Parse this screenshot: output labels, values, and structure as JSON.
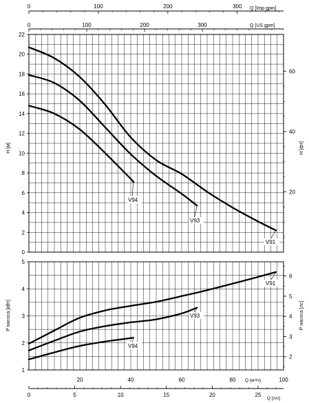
{
  "chart_data": [
    {
      "type": "line",
      "name": "head",
      "ylabel": "H [м]",
      "ylabel_right": "H [фт]",
      "xlim": [
        0,
        100
      ],
      "ylim": [
        0,
        22
      ],
      "yticks": [
        0,
        2,
        4,
        6,
        8,
        10,
        12,
        14,
        16,
        18,
        20,
        22
      ],
      "yticks_right": [
        20,
        40,
        60
      ],
      "series": [
        {
          "name": "V94",
          "x": [
            0,
            10,
            20,
            30,
            40,
            41
          ],
          "y": [
            14.8,
            14.0,
            12.4,
            10.0,
            7.4,
            7.1
          ]
        },
        {
          "name": "V93",
          "x": [
            0,
            10,
            20,
            30,
            40,
            50,
            60,
            66
          ],
          "y": [
            17.9,
            17.1,
            15.3,
            12.6,
            9.9,
            7.7,
            5.9,
            4.7
          ]
        },
        {
          "name": "V91",
          "x": [
            0,
            10,
            20,
            30,
            40,
            50,
            60,
            70,
            80,
            90,
            97
          ],
          "y": [
            20.7,
            19.6,
            17.7,
            14.9,
            11.6,
            9.3,
            7.9,
            6.1,
            4.5,
            3.1,
            2.2
          ]
        }
      ]
    },
    {
      "type": "line",
      "name": "power",
      "ylabel": "P насоса [кВт]",
      "ylabel_right": "P насоса [лс]",
      "xlim": [
        0,
        100
      ],
      "ylim": [
        1,
        5
      ],
      "yticks": [
        1,
        2,
        3,
        4,
        5
      ],
      "yticks_right": [
        2,
        3,
        4,
        5,
        6
      ],
      "series": [
        {
          "name": "V94",
          "x": [
            0,
            10,
            20,
            30,
            41
          ],
          "y": [
            1.39,
            1.65,
            1.89,
            2.05,
            2.19
          ]
        },
        {
          "name": "V93",
          "x": [
            0,
            10,
            20,
            30,
            40,
            50,
            60,
            66
          ],
          "y": [
            1.72,
            2.08,
            2.42,
            2.62,
            2.76,
            2.87,
            3.09,
            3.3
          ]
        },
        {
          "name": "V91",
          "x": [
            0,
            10,
            20,
            30,
            40,
            50,
            60,
            70,
            80,
            90,
            97
          ],
          "y": [
            1.97,
            2.46,
            2.93,
            3.2,
            3.37,
            3.52,
            3.73,
            3.95,
            4.19,
            4.44,
            4.62
          ]
        }
      ]
    }
  ],
  "axes": {
    "imp_gpm": {
      "label": "Q [Imp gpm]",
      "ticks": [
        "0",
        "100",
        "200",
        "300"
      ]
    },
    "us_gpm": {
      "label": "Q [US gpm]",
      "ticks": [
        "0",
        "100",
        "200",
        "300"
      ]
    },
    "m3h": {
      "label": "Q (м³/ч)",
      "ticks": [
        "20",
        "40",
        "60",
        "80",
        "100"
      ]
    },
    "ls": {
      "label": "Q [л/с]",
      "ticks": [
        "0",
        "5",
        "10",
        "15",
        "20",
        "25"
      ]
    }
  },
  "curve_labels": {
    "top": [
      "V94",
      "V93",
      "V91"
    ],
    "bottom": [
      "V91",
      "V93",
      "V94"
    ]
  }
}
